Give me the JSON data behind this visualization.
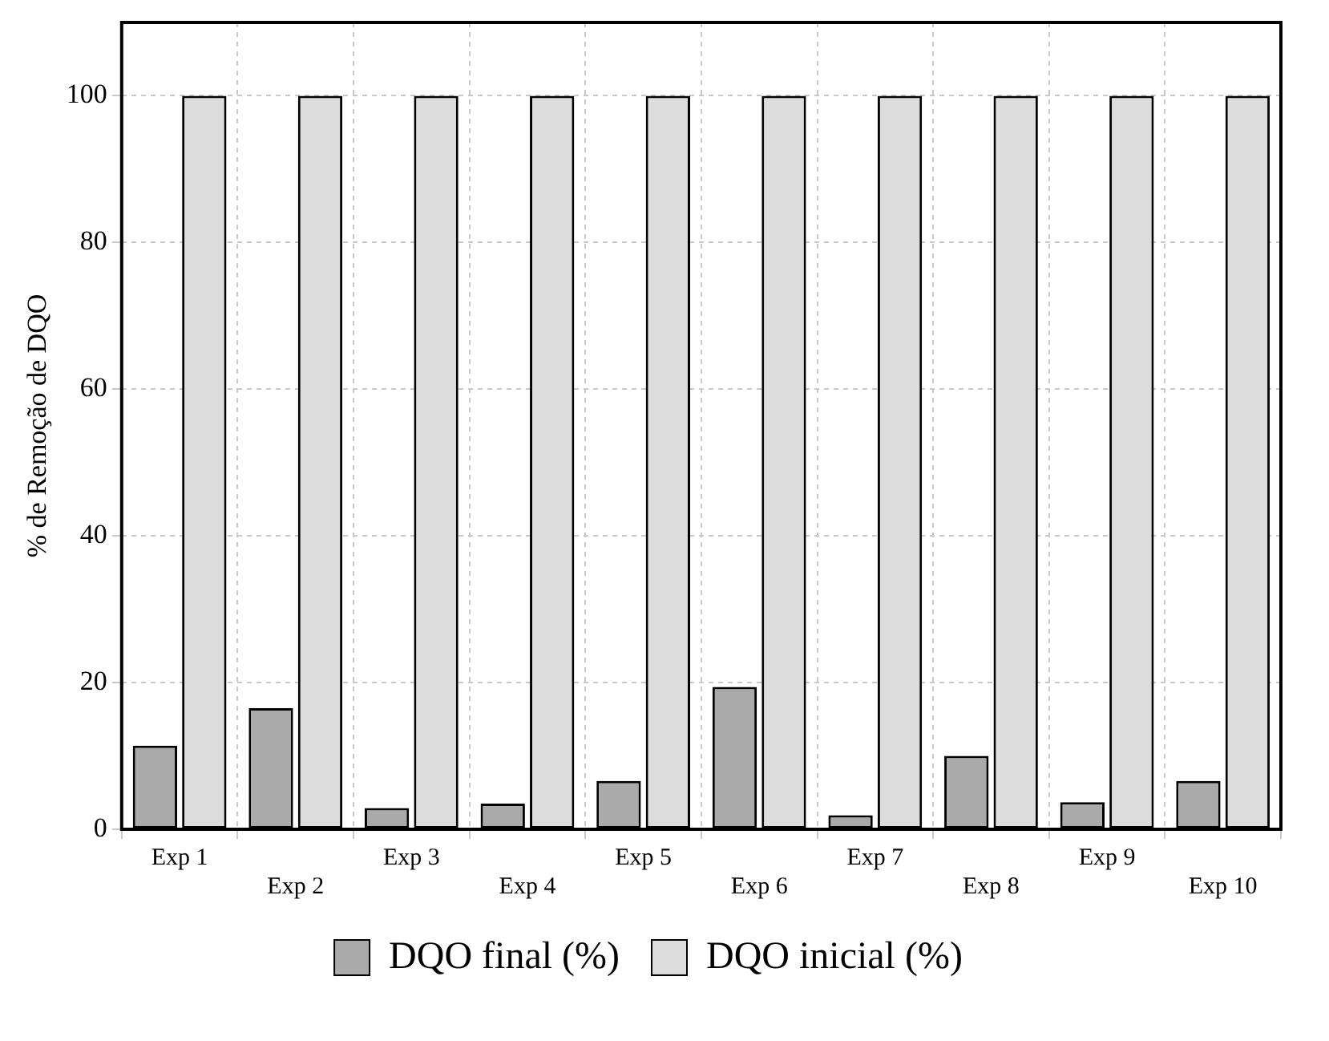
{
  "chart_data": {
    "type": "bar",
    "ylabel": "% de Remoção de DQO",
    "categories": [
      "Exp 1",
      "Exp 2",
      "Exp 3",
      "Exp 4",
      "Exp 5",
      "Exp 6",
      "Exp 7",
      "Exp 8",
      "Exp 9",
      "Exp 10"
    ],
    "series": [
      {
        "name": "DQO final (%)",
        "color": "#aaaaaa",
        "values": [
          11.4,
          16.5,
          2.9,
          3.5,
          6.6,
          19.4,
          1.9,
          10.0,
          3.7,
          6.6
        ]
      },
      {
        "name": "DQO inicial (%)",
        "color": "#dcdcdc",
        "values": [
          100,
          100,
          100,
          100,
          100,
          100,
          100,
          100,
          100,
          100
        ]
      }
    ],
    "ylim": [
      0,
      110
    ],
    "yticks": [
      0,
      20,
      40,
      60,
      80,
      100
    ],
    "grid": true,
    "legend": "bottom"
  }
}
